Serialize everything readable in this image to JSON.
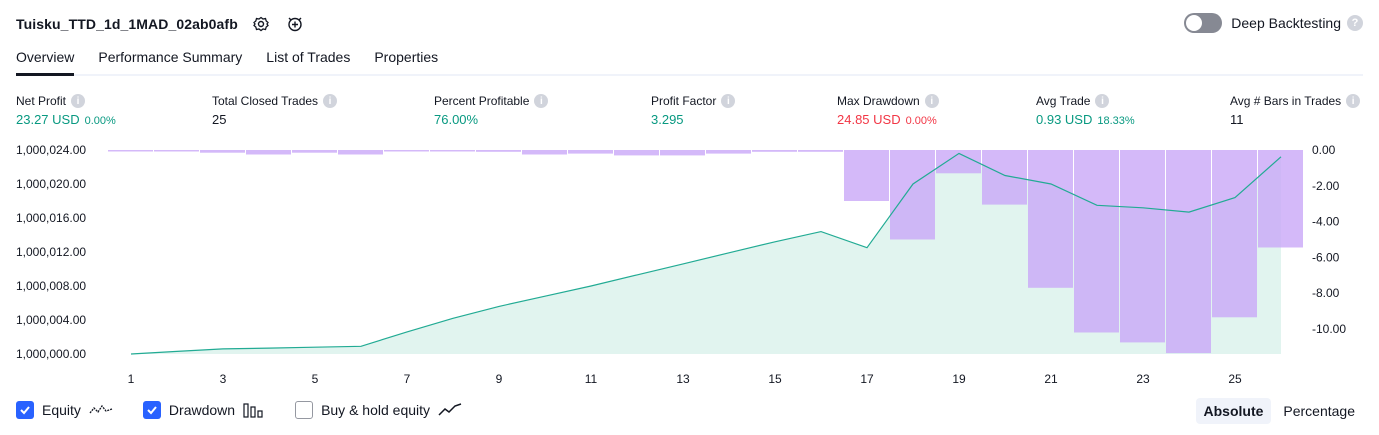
{
  "header": {
    "title": "Tuisku_TTD_1d_1MAD_02ab0afb",
    "settings_icon": "gear-icon",
    "alert_icon": "add-alert-icon"
  },
  "deep_backtesting": {
    "label": "Deep Backtesting",
    "enabled": false,
    "help": "?"
  },
  "tabs": [
    {
      "label": "Overview",
      "active": true
    },
    {
      "label": "Performance Summary",
      "active": false
    },
    {
      "label": "List of Trades",
      "active": false
    },
    {
      "label": "Properties",
      "active": false
    }
  ],
  "stats": [
    {
      "label": "Net Profit",
      "value": "23.27 USD",
      "sub": "0.00%",
      "tone": "pos"
    },
    {
      "label": "Total Closed Trades",
      "value": "25",
      "sub": "",
      "tone": "neutral"
    },
    {
      "label": "Percent Profitable",
      "value": "76.00%",
      "sub": "",
      "tone": "pos"
    },
    {
      "label": "Profit Factor",
      "value": "3.295",
      "sub": "",
      "tone": "pos"
    },
    {
      "label": "Max Drawdown",
      "value": "24.85 USD",
      "sub": "0.00%",
      "tone": "neg"
    },
    {
      "label": "Avg Trade",
      "value": "0.93 USD",
      "sub": "18.33%",
      "tone": "pos"
    },
    {
      "label": "Avg # Bars in Trades",
      "value": "11",
      "sub": "",
      "tone": "neutral"
    }
  ],
  "info_glyph": "i",
  "chart_data": {
    "type": "area",
    "x_ticks": [
      "1",
      "3",
      "5",
      "7",
      "9",
      "11",
      "13",
      "15",
      "17",
      "19",
      "21",
      "23",
      "25"
    ],
    "left_axis": {
      "ticks": [
        "1,000,024.00",
        "1,000,020.00",
        "1,000,016.00",
        "1,000,012.00",
        "1,000,008.00",
        "1,000,004.00",
        "1,000,000.00"
      ],
      "range": [
        1000000,
        1000024
      ]
    },
    "right_axis": {
      "ticks": [
        "0.00",
        "-2.00",
        "-4.00",
        "-6.00",
        "-8.00",
        "-10.00"
      ],
      "range": [
        0,
        -11.4
      ]
    },
    "equity": {
      "name": "Equity",
      "x": [
        1,
        2,
        3,
        4,
        5,
        6,
        7,
        8,
        9,
        10,
        11,
        12,
        13,
        14,
        15,
        16,
        17,
        18,
        19,
        20,
        21,
        22,
        23,
        24,
        25,
        26
      ],
      "values": [
        1000000.0,
        1000000.3,
        1000000.6,
        1000000.7,
        1000000.8,
        1000000.9,
        1000002.6,
        1000004.2,
        1000005.6,
        1000006.8,
        1000008.0,
        1000009.3,
        1000010.6,
        1000011.9,
        1000013.2,
        1000014.4,
        1000012.5,
        1000020.0,
        1000023.6,
        1000021.0,
        1000020.0,
        1000017.5,
        1000017.2,
        1000016.7,
        1000018.4,
        1000023.2
      ]
    },
    "drawdown": {
      "name": "Drawdown",
      "x": [
        1,
        2,
        3,
        4,
        5,
        6,
        7,
        8,
        9,
        10,
        11,
        12,
        13,
        14,
        15,
        16,
        17,
        18,
        19,
        20,
        21,
        22,
        23,
        24,
        25,
        26
      ],
      "values": [
        -0.05,
        -0.05,
        -0.15,
        -0.25,
        -0.15,
        -0.25,
        -0.05,
        -0.05,
        -0.1,
        -0.25,
        -0.2,
        -0.3,
        -0.3,
        -0.2,
        -0.1,
        -0.1,
        -2.85,
        -5.0,
        -1.3,
        -3.05,
        -7.7,
        -10.2,
        -10.75,
        -11.35,
        -9.35,
        -5.45
      ]
    },
    "colors": {
      "equity_line": "#22ab94",
      "equity_fill": "#d7f0ea",
      "drawdown_fill": "#c9a8f7",
      "grid_line": "#ffffff"
    }
  },
  "legend": [
    {
      "label": "Equity",
      "checked": true,
      "icon": "equity-line-icon"
    },
    {
      "label": "Drawdown",
      "checked": true,
      "icon": "drawdown-bars-icon"
    },
    {
      "label": "Buy & hold equity",
      "checked": false,
      "icon": "buy-hold-line-icon"
    }
  ],
  "modes": [
    {
      "label": "Absolute",
      "active": true
    },
    {
      "label": "Percentage",
      "active": false
    }
  ]
}
